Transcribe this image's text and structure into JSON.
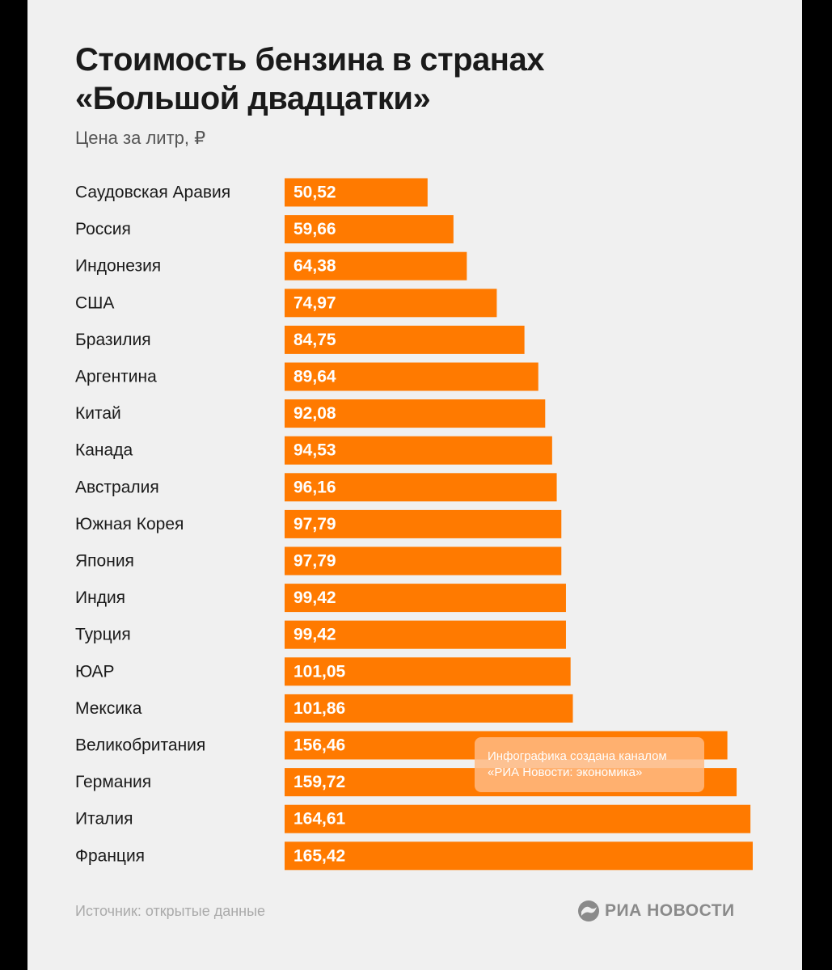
{
  "header": {
    "title_line1": "Стоимость бензина в странах",
    "title_line2": "«Большой двадцатки»",
    "subtitle": "Цена за литр, ₽"
  },
  "chart_data": {
    "type": "bar",
    "orientation": "horizontal",
    "title": "Стоимость бензина в странах «Большой двадцатки»",
    "subtitle": "Цена за литр, ₽",
    "bar_color": "#ff7a00",
    "categories": [
      "Саудовская Аравия",
      "Россия",
      "Индонезия",
      "США",
      "Бразилия",
      "Аргентина",
      "Китай",
      "Канада",
      "Австралия",
      "Южная Корея",
      "Япония",
      "Индия",
      "Турция",
      "ЮАР",
      "Мексика",
      "Великобритания",
      "Германия",
      "Италия",
      "Франция"
    ],
    "values": [
      50.52,
      59.66,
      64.38,
      74.97,
      84.75,
      89.64,
      92.08,
      94.53,
      96.16,
      97.79,
      97.79,
      99.42,
      99.42,
      101.05,
      101.86,
      156.46,
      159.72,
      164.61,
      165.42
    ],
    "value_labels": [
      "50,52",
      "59,66",
      "64,38",
      "74,97",
      "84,75",
      "89,64",
      "92,08",
      "94,53",
      "96,16",
      "97,79",
      "97,79",
      "99,42",
      "99,42",
      "101,05",
      "101,86",
      "156,46",
      "159,72",
      "164,61",
      "165,42"
    ]
  },
  "note": {
    "line1": "Инфографика создана каналом",
    "line2": "«РИА Новости: экономика»"
  },
  "footer": {
    "source": "Источник: открытые данные",
    "logo_text": "РИА НОВОСТИ",
    "logo_icon": "ria-novosti-logo-icon"
  }
}
